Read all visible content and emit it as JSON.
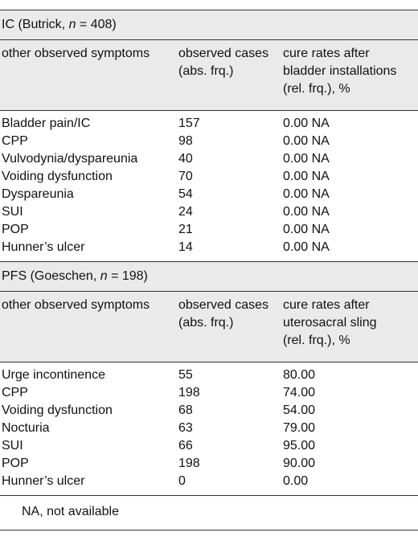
{
  "sections": [
    {
      "title_pre": "IC (Butrick, ",
      "title_n": "n",
      "title_post": " = 408)",
      "header": {
        "col1": "other observed symptoms",
        "col2_line1": "observed cases",
        "col2_line2": "(abs. frq.)",
        "col3_line1": "cure rates after",
        "col3_line2": "bladder installations",
        "col3_line3": "(rel. frq.), %"
      },
      "rows": [
        {
          "symptom": "Bladder pain/IC",
          "cases": "157",
          "cure": "0.00 NA"
        },
        {
          "symptom": "CPP",
          "cases": "98",
          "cure": "0.00 NA"
        },
        {
          "symptom": "Vulvodynia/dyspareunia",
          "cases": "40",
          "cure": "0.00 NA"
        },
        {
          "symptom": "Voiding dysfunction",
          "cases": "70",
          "cure": "0.00 NA"
        },
        {
          "symptom": "Dyspareunia",
          "cases": "54",
          "cure": "0.00 NA"
        },
        {
          "symptom": "SUI",
          "cases": "24",
          "cure": "0.00 NA"
        },
        {
          "symptom": "POP",
          "cases": "21",
          "cure": "0.00 NA"
        },
        {
          "symptom": "Hunner’s ulcer",
          "cases": "14",
          "cure": "0.00 NA"
        }
      ]
    },
    {
      "title_pre": "PFS (Goeschen, ",
      "title_n": "n",
      "title_post": " = 198)",
      "header": {
        "col1": "other observed symptoms",
        "col2_line1": "observed cases",
        "col2_line2": "(abs. frq.)",
        "col3_line1": "cure rates after",
        "col3_line2": "uterosacral sling",
        "col3_line3": "(rel. frq.), %"
      },
      "rows": [
        {
          "symptom": "Urge incontinence",
          "cases": "55",
          "cure": "80.00"
        },
        {
          "symptom": "CPP",
          "cases": "198",
          "cure": "74.00"
        },
        {
          "symptom": "Voiding dysfunction",
          "cases": "68",
          "cure": "54.00"
        },
        {
          "symptom": "Nocturia",
          "cases": "63",
          "cure": "79.00"
        },
        {
          "symptom": "SUI",
          "cases": "66",
          "cure": "95.00"
        },
        {
          "symptom": "POP",
          "cases": "198",
          "cure": "90.00"
        },
        {
          "symptom": "Hunner’s ulcer",
          "cases": "0",
          "cure": "0.00"
        }
      ]
    }
  ],
  "footnote": "NA, not available"
}
